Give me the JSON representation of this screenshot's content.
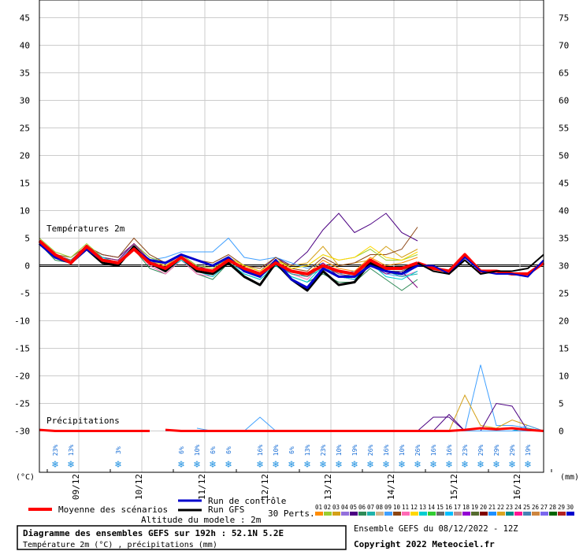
{
  "chart_data": {
    "type": "line",
    "left_axis": {
      "unit_label": "(°C)",
      "ylim": [
        -30,
        45
      ],
      "ticks": [
        45,
        40,
        35,
        30,
        25,
        20,
        15,
        10,
        5,
        0,
        -5,
        -10,
        -15,
        -20,
        -25,
        -30
      ]
    },
    "right_axis": {
      "unit_label": "(mm)",
      "ylim": [
        0,
        75
      ],
      "ticks": [
        75,
        70,
        65,
        60,
        55,
        50,
        45,
        40,
        35,
        30,
        25,
        20,
        15,
        10,
        5,
        0
      ]
    },
    "x_axis": {
      "step_hours": 6,
      "range_steps": [
        0,
        32
      ],
      "date_ticks": [
        {
          "label": "09/12",
          "step": 2.5
        },
        {
          "label": "10/12",
          "step": 6.5
        },
        {
          "label": "11/12",
          "step": 10.5
        },
        {
          "label": "12/12",
          "step": 14.5
        },
        {
          "label": "13/12",
          "step": 18.5
        },
        {
          "label": "14/12",
          "step": 22.5
        },
        {
          "label": "15/12",
          "step": 26.5
        },
        {
          "label": "16/12",
          "step": 30.5
        }
      ]
    },
    "section_labels": {
      "temperature": "Températures 2m",
      "precipitation": "Précipitations"
    },
    "series": [
      {
        "name": "Moyenne des scénarios",
        "role": "mean",
        "color": "#ff0000",
        "values": [
          4.5,
          2,
          0.5,
          3.5,
          1,
          0.5,
          3,
          0.5,
          -0.5,
          1.5,
          -0.5,
          -1,
          1,
          -0.5,
          -1.5,
          0.5,
          -1,
          -1.5,
          0,
          -1,
          -1.5,
          1,
          -0.5,
          -0.5,
          0.5
        ]
      },
      {
        "name": "Run de contrôle",
        "role": "control",
        "color": "#0000cc",
        "values": [
          4,
          1.5,
          0.5,
          3,
          1,
          0.5,
          3,
          1,
          0.5,
          2,
          1,
          0,
          1.5,
          -1,
          -2,
          1,
          -2.5,
          -4,
          -0.5,
          -2,
          -2,
          0,
          -1,
          -1.5,
          0
        ]
      },
      {
        "name": "Run GFS",
        "role": "gfs",
        "color": "#000000",
        "values": [
          4,
          1.5,
          0.5,
          3,
          0.5,
          0,
          3.5,
          0.5,
          -1,
          1.5,
          -1,
          -1.5,
          0.5,
          -2,
          -3.5,
          0.5,
          -2.5,
          -4.5,
          -1,
          -3.5,
          -3,
          0.5,
          -1,
          -1.5,
          0.5
        ]
      },
      {
        "name": "P1",
        "color": "#4b0082",
        "values": [
          4.5,
          2,
          1,
          3.5,
          2,
          1.5,
          4,
          1.5,
          0.5,
          2,
          0,
          -1,
          1.5,
          0,
          -1,
          1.5,
          0,
          2.5,
          6.5,
          9.5,
          6,
          7.5,
          9.5,
          6,
          4.5
        ]
      },
      {
        "name": "P2",
        "color": "#d4a017",
        "values": [
          4,
          1.5,
          1,
          3,
          1,
          0.5,
          3.5,
          1,
          0,
          2,
          0,
          -0.5,
          1.5,
          0,
          -1,
          1,
          0,
          0.5,
          3.5,
          0,
          0.5,
          1,
          3.5,
          1.5,
          3
        ]
      },
      {
        "name": "P3",
        "color": "#40a0ff",
        "values": [
          4,
          2,
          1,
          3.5,
          1.5,
          1,
          3.5,
          1,
          1.5,
          2.5,
          2.5,
          2.5,
          5,
          1.5,
          1,
          1.5,
          0.5,
          -0.5,
          0.5,
          -1.5,
          -1,
          0.5,
          -1.5,
          -2,
          0
        ]
      },
      {
        "name": "P4",
        "color": "#8b4513",
        "values": [
          4.5,
          2,
          1.5,
          3.5,
          2,
          1.5,
          5,
          2,
          0.5,
          2,
          1,
          0.5,
          2,
          0,
          -0.5,
          1.5,
          -0.5,
          -1,
          1.5,
          0,
          0.5,
          2,
          2,
          3,
          7
        ]
      },
      {
        "name": "P5",
        "color": "#2e8b57",
        "values": [
          4,
          1,
          0.5,
          3,
          1,
          0,
          3,
          -0.5,
          -1.5,
          1,
          -1.5,
          -2.5,
          0.5,
          -1.5,
          -2.5,
          0,
          -2,
          -3,
          -1.5,
          -3,
          -3,
          -0.5,
          -2.5,
          -4.5,
          -2.5
        ]
      },
      {
        "name": "P6",
        "color": "#ff69b4",
        "values": [
          4,
          1.5,
          0.5,
          3.5,
          0.5,
          0,
          3,
          0,
          -1.5,
          1,
          -1.5,
          -2,
          0.5,
          -1,
          -2,
          0,
          -1.5,
          -2.5,
          0.5,
          -1.5,
          -2,
          1,
          -1,
          -2,
          -1
        ]
      },
      {
        "name": "P7",
        "color": "#9acd32",
        "values": [
          5,
          2.5,
          1.5,
          4,
          1.5,
          1,
          4,
          1.5,
          0.5,
          2,
          0,
          -0.5,
          1.5,
          0,
          -1,
          1,
          -0.5,
          0,
          2,
          1,
          1.5,
          3,
          1,
          1,
          2
        ]
      },
      {
        "name": "P8",
        "color": "#800080",
        "values": [
          4.5,
          2,
          1,
          3.5,
          1.5,
          1,
          4,
          1,
          0,
          1.5,
          -0.5,
          -1,
          1,
          -1,
          -2,
          0.5,
          -1.5,
          -2,
          0.5,
          -2,
          -2.5,
          0,
          -1.5,
          -1,
          -4
        ]
      },
      {
        "name": "P9",
        "color": "#20b2aa",
        "values": [
          4,
          1.5,
          1,
          3.5,
          1,
          0.5,
          3.5,
          0.5,
          -1,
          1.5,
          -1,
          -1.5,
          0.5,
          -1,
          -2,
          0,
          -1.5,
          -2,
          -0.5,
          -2,
          -1.5,
          0.5,
          -1,
          -2,
          -1.5
        ]
      },
      {
        "name": "P10",
        "color": "#ff8c00",
        "values": [
          4,
          1.5,
          0.5,
          3,
          1,
          0.5,
          3,
          0.5,
          -0.5,
          1.5,
          -0.5,
          -1,
          1,
          -0.5,
          -1.5,
          0.5,
          -1,
          -1.5,
          1,
          -0.5,
          -1,
          1.5,
          0,
          0.5,
          1.5
        ]
      },
      {
        "name": "P11",
        "color": "#00ced1",
        "values": [
          4.5,
          2,
          1,
          3.5,
          1.5,
          0.5,
          3,
          0.5,
          -1,
          1,
          -1,
          -2,
          0.5,
          -1.5,
          -2.5,
          0,
          -2,
          -3,
          0,
          -2,
          -2.5,
          0.5,
          -2,
          -2.5,
          -1
        ]
      },
      {
        "name": "P12",
        "color": "#ffd700",
        "values": [
          4,
          1.5,
          1,
          3,
          1,
          0.5,
          3.5,
          1,
          0,
          1.5,
          -0.5,
          -1,
          1.5,
          0,
          -1,
          1,
          -0.5,
          0,
          2,
          1,
          1.5,
          3.5,
          1.5,
          1,
          2.5
        ]
      },
      {
        "name": "P13",
        "color": "#696969",
        "values": [
          4.5,
          2,
          1,
          3.5,
          1,
          0.5,
          3.5,
          1,
          -0.5,
          1.5,
          -0.5,
          -1,
          1,
          -0.5,
          -1.5,
          0.5,
          -1,
          -2,
          0,
          -1.5,
          -2,
          0.5,
          -1,
          -1,
          0.5
        ]
      }
    ],
    "precipitation": {
      "mean_values": [
        0.2,
        0,
        0,
        0,
        0,
        0,
        0,
        0,
        0,
        0,
        0,
        0,
        0,
        0,
        0,
        0,
        0,
        0,
        0,
        0.2,
        0.5,
        0.3,
        0.5,
        0.2,
        0
      ],
      "members": [
        {
          "color": "#40a0ff",
          "values": [
            0,
            0,
            0,
            0,
            0,
            0,
            0,
            0,
            0,
            0,
            0,
            0,
            0,
            0,
            0,
            0,
            0,
            0,
            0,
            0,
            12,
            1,
            1,
            0.5,
            0
          ]
        },
        {
          "color": "#d4a017",
          "values": [
            0,
            0,
            0,
            0,
            0,
            0,
            0,
            0,
            0,
            0,
            0,
            0,
            0,
            0,
            0,
            0,
            0,
            0,
            0,
            6.5,
            1,
            0.5,
            2,
            1,
            0
          ]
        },
        {
          "color": "#4b0082",
          "values": [
            0,
            0,
            0,
            0,
            0,
            0,
            0,
            0,
            0,
            0,
            0,
            0,
            0,
            0,
            0,
            0,
            0,
            0,
            3,
            0,
            0,
            5,
            4.5,
            0,
            0
          ]
        },
        {
          "color": "#40a0ff",
          "values": [
            0,
            0,
            0,
            0,
            0,
            0,
            0,
            0,
            0,
            0,
            0,
            0,
            0,
            0,
            0,
            0,
            0,
            0,
            0,
            0,
            0,
            0,
            0,
            1,
            0
          ]
        },
        {
          "color": "#20b2aa",
          "values": [
            0,
            0,
            0,
            0,
            0,
            0,
            0,
            0,
            0,
            0,
            0,
            0,
            0,
            0,
            0,
            0,
            0,
            0,
            0,
            0,
            0,
            0,
            0,
            0.5,
            0
          ]
        },
        {
          "color": "#4b0082",
          "values": [
            0,
            0,
            0,
            0,
            0,
            0,
            0,
            0,
            0,
            0,
            0,
            0,
            0,
            0,
            0,
            0,
            0,
            2.5,
            2.5,
            0,
            0,
            0,
            0,
            0,
            0
          ]
        },
        {
          "color": "#40a0ff",
          "values": [
            0,
            0,
            0,
            0,
            0,
            0,
            0,
            0,
            0,
            0,
            0,
            0,
            0,
            0,
            0,
            0,
            0,
            0,
            0,
            0,
            0,
            0,
            0,
            0,
            0
          ]
        }
      ],
      "start_step": 8,
      "early_members": [
        {
          "color": "#40a0ff",
          "start_step": 10,
          "values": [
            0.5,
            0,
            0,
            0,
            2.5,
            0
          ]
        }
      ]
    },
    "snow_probabilities": [
      {
        "step": 1,
        "label": "23%"
      },
      {
        "step": 2,
        "label": "13%"
      },
      {
        "step": 5,
        "label": "3%"
      },
      {
        "step": 9,
        "label": "6%"
      },
      {
        "step": 10,
        "label": "10%"
      },
      {
        "step": 11,
        "label": "6%"
      },
      {
        "step": 12,
        "label": "6%"
      },
      {
        "step": 14,
        "label": "16%"
      },
      {
        "step": 15,
        "label": "10%"
      },
      {
        "step": 16,
        "label": "6%"
      },
      {
        "step": 17,
        "label": "13%"
      },
      {
        "step": 18,
        "label": "23%"
      },
      {
        "step": 19,
        "label": "10%"
      },
      {
        "step": 20,
        "label": "19%"
      },
      {
        "step": 21,
        "label": "26%"
      },
      {
        "step": 22,
        "label": "16%"
      },
      {
        "step": 23,
        "label": "10%"
      },
      {
        "step": 24,
        "label": "26%"
      },
      {
        "step": 25,
        "label": "16%"
      },
      {
        "step": 26,
        "label": "16%"
      },
      {
        "step": 27,
        "label": "23%"
      },
      {
        "step": 28,
        "label": "29%"
      },
      {
        "step": 29,
        "label": "29%"
      },
      {
        "step": 30,
        "label": "29%"
      },
      {
        "step": 31,
        "label": "19%"
      }
    ]
  },
  "legend": {
    "mean_label": "Moyenne des scénarios",
    "control_label": "Run de contrôle",
    "gfs_label": "Run GFS",
    "perts_label": "30 Perts.",
    "altitude_label": "Altitude du modele : 2m",
    "pert_numbers": [
      "01",
      "02",
      "03",
      "04",
      "05",
      "06",
      "07",
      "08",
      "09",
      "10",
      "11",
      "12",
      "13",
      "14",
      "15",
      "16",
      "17",
      "18",
      "19",
      "20",
      "21",
      "22",
      "23",
      "24",
      "25",
      "26",
      "27",
      "28",
      "29",
      "30"
    ],
    "pert_colors": [
      "#ff8c00",
      "#9acd32",
      "#d4a017",
      "#9370db",
      "#4b0082",
      "#2e8b57",
      "#20b2aa",
      "#d2b48c",
      "#40a0ff",
      "#8b4513",
      "#ff69b4",
      "#ffd700",
      "#00ced1",
      "#32cd32",
      "#696969",
      "#00bfff",
      "#bc8f8f",
      "#9400d3",
      "#556b2f",
      "#800000",
      "#1e90ff",
      "#daa520",
      "#008b8b",
      "#ff1493",
      "#4682b4",
      "#cd853f",
      "#7b68ee",
      "#006400",
      "#b22222",
      "#0000cd"
    ]
  },
  "footer": {
    "title": "Diagramme des ensembles GEFS sur 192h : 52.1N 5.2E",
    "subtitle": "Température 2m (°C) , précipitations (mm)",
    "run_info": "Ensemble GEFS du 08/12/2022 - 12Z",
    "copyright": "Copyright 2022 Meteociel.fr"
  }
}
